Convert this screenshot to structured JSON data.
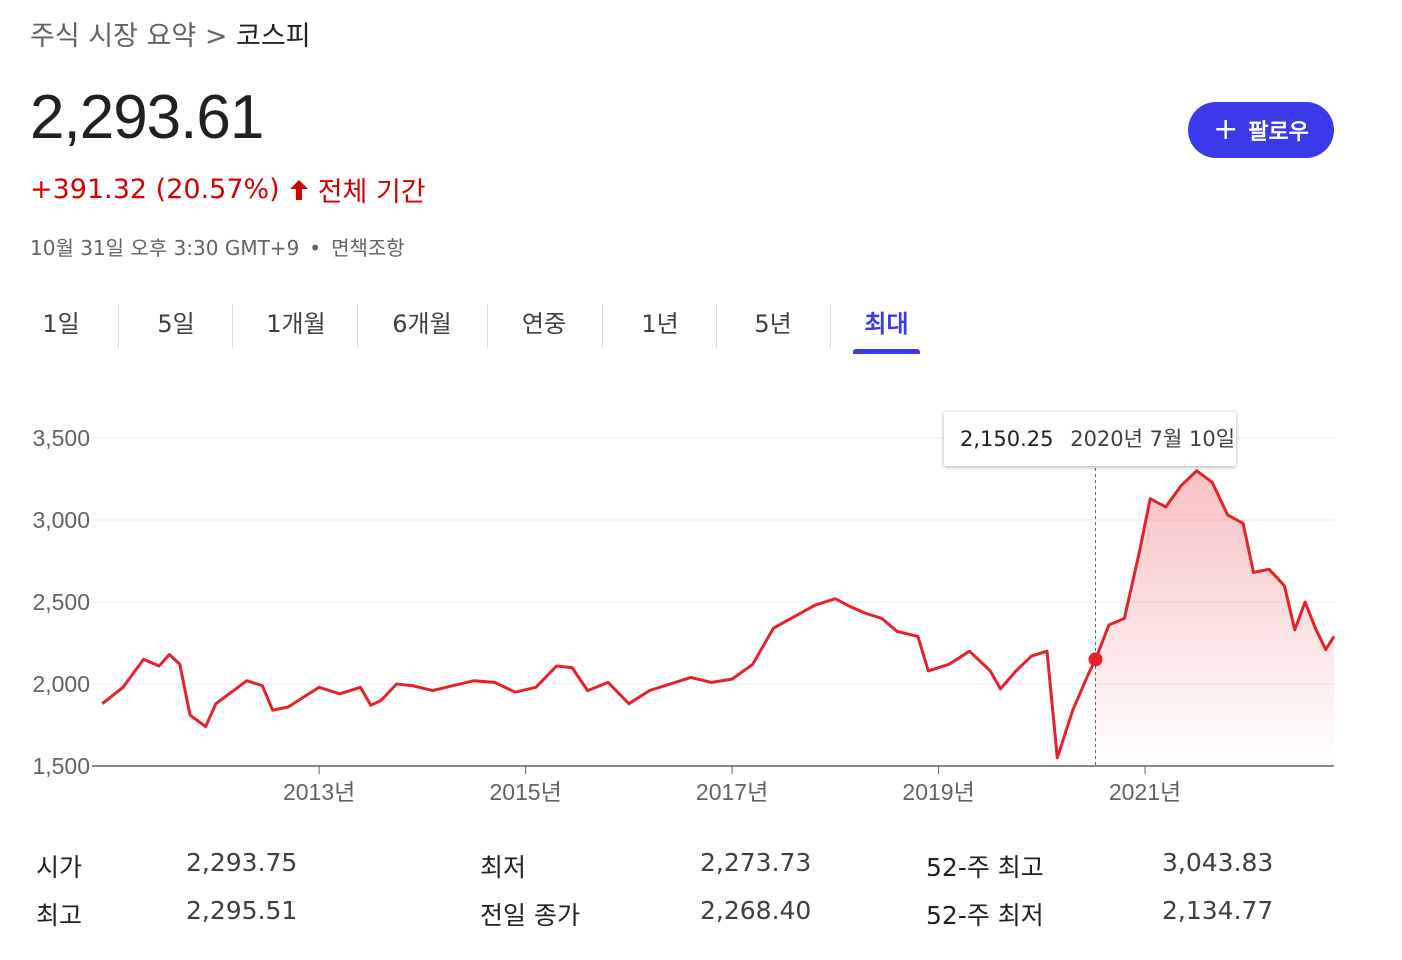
{
  "breadcrumb": {
    "parent": "주식 시장 요약",
    "separator": ">",
    "current": "코스피"
  },
  "quote": {
    "price": "2,293.61",
    "change": "+391.32 (20.57%)",
    "period": "전체 기간",
    "timestamp": "10월 31일 오후 3:30 GMT+9",
    "dot": "•",
    "disclaimer": "면책조항"
  },
  "follow_button": {
    "icon": "plus-icon",
    "label": "팔로우"
  },
  "tabs": [
    {
      "label": "1일"
    },
    {
      "label": "5일"
    },
    {
      "label": "1개월"
    },
    {
      "label": "6개월"
    },
    {
      "label": "연중"
    },
    {
      "label": "1년"
    },
    {
      "label": "5년"
    },
    {
      "label": "최대",
      "active": true
    }
  ],
  "tooltip": {
    "value": "2,150.25",
    "date": "2020년 7월 10일"
  },
  "colors": {
    "accent": "#3a3ae8",
    "negative_up_red": "#d50000",
    "line": "#e52129"
  },
  "chart_data": {
    "type": "area",
    "title": "",
    "xlabel": "",
    "ylabel": "",
    "y_ticks": [
      "3,500",
      "3,000",
      "2,500",
      "2,000",
      "1,500"
    ],
    "x_ticks": [
      "2013년",
      "2015년",
      "2017년",
      "2019년",
      "2021년"
    ],
    "ylim": [
      1500,
      3500
    ],
    "xlim": [
      2010.8,
      2022.83
    ],
    "grid": true,
    "highlight": {
      "x": 2020.52,
      "y": 2150.25
    },
    "series": [
      {
        "values": [
          [
            2010.9,
            1880
          ],
          [
            2011.1,
            1980
          ],
          [
            2011.3,
            2150
          ],
          [
            2011.45,
            2110
          ],
          [
            2011.55,
            2180
          ],
          [
            2011.65,
            2120
          ],
          [
            2011.75,
            1810
          ],
          [
            2011.9,
            1740
          ],
          [
            2012.0,
            1880
          ],
          [
            2012.15,
            1950
          ],
          [
            2012.3,
            2020
          ],
          [
            2012.45,
            1990
          ],
          [
            2012.55,
            1840
          ],
          [
            2012.7,
            1860
          ],
          [
            2012.85,
            1920
          ],
          [
            2013.0,
            1980
          ],
          [
            2013.2,
            1940
          ],
          [
            2013.4,
            1980
          ],
          [
            2013.5,
            1870
          ],
          [
            2013.6,
            1900
          ],
          [
            2013.75,
            2000
          ],
          [
            2013.9,
            1990
          ],
          [
            2014.1,
            1960
          ],
          [
            2014.3,
            1990
          ],
          [
            2014.5,
            2020
          ],
          [
            2014.7,
            2010
          ],
          [
            2014.9,
            1950
          ],
          [
            2015.1,
            1980
          ],
          [
            2015.3,
            2110
          ],
          [
            2015.45,
            2100
          ],
          [
            2015.6,
            1960
          ],
          [
            2015.8,
            2010
          ],
          [
            2016.0,
            1880
          ],
          [
            2016.2,
            1960
          ],
          [
            2016.4,
            2000
          ],
          [
            2016.6,
            2040
          ],
          [
            2016.8,
            2010
          ],
          [
            2017.0,
            2030
          ],
          [
            2017.2,
            2120
          ],
          [
            2017.4,
            2340
          ],
          [
            2017.6,
            2410
          ],
          [
            2017.8,
            2480
          ],
          [
            2018.0,
            2520
          ],
          [
            2018.15,
            2470
          ],
          [
            2018.3,
            2430
          ],
          [
            2018.45,
            2400
          ],
          [
            2018.6,
            2320
          ],
          [
            2018.8,
            2290
          ],
          [
            2018.9,
            2080
          ],
          [
            2019.1,
            2120
          ],
          [
            2019.3,
            2200
          ],
          [
            2019.5,
            2080
          ],
          [
            2019.6,
            1970
          ],
          [
            2019.75,
            2080
          ],
          [
            2019.9,
            2170
          ],
          [
            2020.05,
            2200
          ],
          [
            2020.15,
            1550
          ],
          [
            2020.3,
            1840
          ],
          [
            2020.45,
            2060
          ],
          [
            2020.52,
            2150
          ],
          [
            2020.65,
            2360
          ],
          [
            2020.8,
            2400
          ],
          [
            2020.95,
            2820
          ],
          [
            2021.05,
            3130
          ],
          [
            2021.2,
            3080
          ],
          [
            2021.35,
            3210
          ],
          [
            2021.5,
            3300
          ],
          [
            2021.65,
            3230
          ],
          [
            2021.8,
            3030
          ],
          [
            2021.95,
            2980
          ],
          [
            2022.05,
            2680
          ],
          [
            2022.2,
            2700
          ],
          [
            2022.35,
            2600
          ],
          [
            2022.45,
            2330
          ],
          [
            2022.55,
            2500
          ],
          [
            2022.65,
            2340
          ],
          [
            2022.75,
            2210
          ],
          [
            2022.83,
            2290
          ]
        ]
      }
    ]
  },
  "stats": [
    [
      {
        "label": "시가",
        "value": "2,293.75"
      },
      {
        "label": "최저",
        "value": "2,273.73"
      },
      {
        "label": "52-주 최고",
        "value": "3,043.83"
      }
    ],
    [
      {
        "label": "최고",
        "value": "2,295.51"
      },
      {
        "label": "전일 종가",
        "value": "2,268.40"
      },
      {
        "label": "52-주 최저",
        "value": "2,134.77"
      }
    ]
  ]
}
